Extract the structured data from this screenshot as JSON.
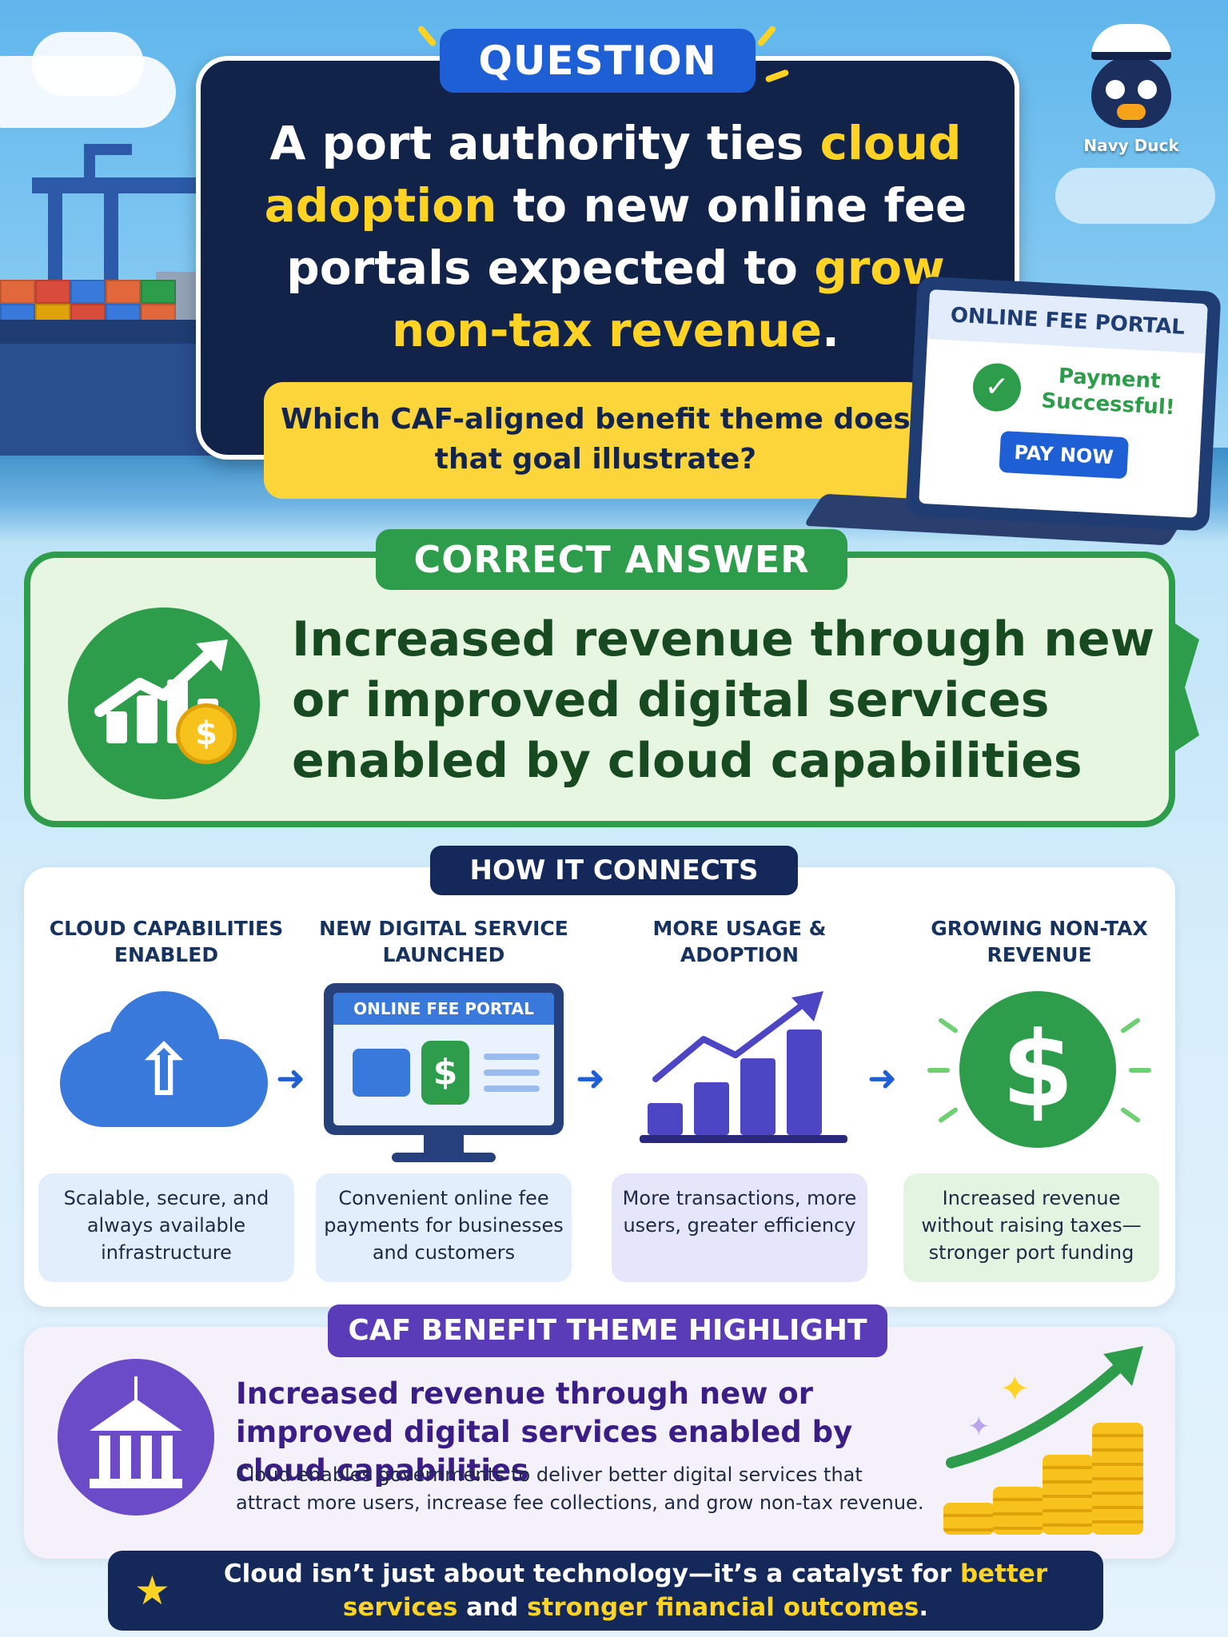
{
  "question": {
    "label": "QUESTION",
    "headline": {
      "part1": "A port authority ties ",
      "highlight1": "cloud adoption",
      "part2": " to new online fee portals expected to ",
      "highlight2": "grow non-tax revenue",
      "part3": "."
    },
    "sub_question": "Which CAF-aligned benefit theme does that goal illustrate?"
  },
  "mascot": {
    "label": "Navy Duck",
    "icon": "navy-duck-icon"
  },
  "laptop": {
    "title": "ONLINE FEE PORTAL",
    "status": "Payment Successful!",
    "button": "PAY NOW"
  },
  "correct_answer": {
    "label": "CORRECT ANSWER",
    "text": "Increased revenue through new or improved digital services enabled by cloud capabilities"
  },
  "how_it_connects": {
    "label": "HOW IT CONNECTS",
    "steps": [
      {
        "title": "CLOUD CAPABILITIES ENABLED",
        "icon": "cloud-upload-icon",
        "description": "Scalable, secure, and always available infrastructure",
        "bg": "#e3eefc"
      },
      {
        "title": "NEW DIGITAL SERVICE LAUNCHED",
        "icon": "monitor-icon",
        "screen_title": "ONLINE FEE PORTAL",
        "description": "Convenient online fee payments for businesses and customers",
        "bg": "#e3eefc"
      },
      {
        "title": "MORE USAGE & ADOPTION",
        "icon": "bar-chart-icon",
        "description": "More transactions, more users, greater efficiency",
        "bg": "#e6e6fa"
      },
      {
        "title": "GROWING NON-TAX REVENUE",
        "icon": "dollar-icon",
        "description": "Increased revenue without raising taxes—stronger port funding",
        "bg": "#e3f5e1"
      }
    ]
  },
  "caf_highlight": {
    "label": "CAF BENEFIT THEME HIGHLIGHT",
    "title": "Increased revenue through new or improved digital services enabled by cloud capabilities",
    "body": "Cloud enables governments to deliver better digital services that attract more users, increase fee collections, and grow non-tax revenue."
  },
  "footer": {
    "part1": "Cloud isn’t just about technology—it’s a catalyst for ",
    "highlight1": "better services",
    "part2": " and ",
    "highlight2": "stronger financial outcomes",
    "part3": "."
  },
  "colors": {
    "navy": "#12234a",
    "blue": "#1f5fd6",
    "yellow": "#ffd324",
    "green": "#2e9d4b",
    "purple": "#5a3bb8"
  }
}
